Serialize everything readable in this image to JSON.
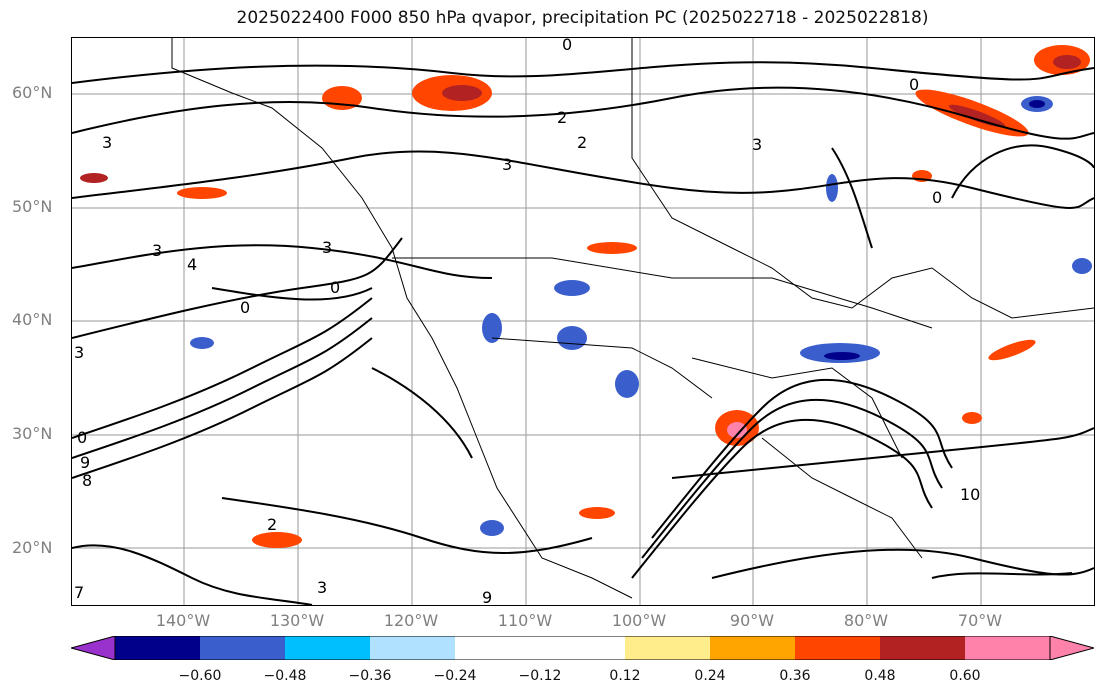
{
  "title": "2025022400 F000 850 hPa qvapor, precipitation PC (2025022718 - 2025022818)",
  "lat_labels": [
    "60°N",
    "50°N",
    "40°N",
    "30°N",
    "20°N"
  ],
  "lon_labels": [
    "140°W",
    "130°W",
    "120°W",
    "110°W",
    "100°W",
    "90°W",
    "80°W",
    "70°W"
  ],
  "colorbar": {
    "ticks": [
      "−0.60",
      "−0.48",
      "−0.36",
      "−0.24",
      "−0.12",
      "0.12",
      "0.24",
      "0.36",
      "0.48",
      "0.60"
    ],
    "colors": [
      "#9932cc",
      "#00008b",
      "#3a5fcd",
      "#00bfff",
      "#b0e2ff",
      "#ffffff",
      "#ffec8b",
      "#ffa500",
      "#ff4500",
      "#b22222",
      "#ff82ab"
    ]
  },
  "contour_labels": [
    "0",
    "2",
    "3",
    "3",
    "3",
    "2",
    "3",
    "0",
    "3",
    "4",
    "0",
    "3",
    "0",
    "2",
    "9",
    "7",
    "8",
    "0",
    "10",
    "0",
    "9",
    "3"
  ]
}
